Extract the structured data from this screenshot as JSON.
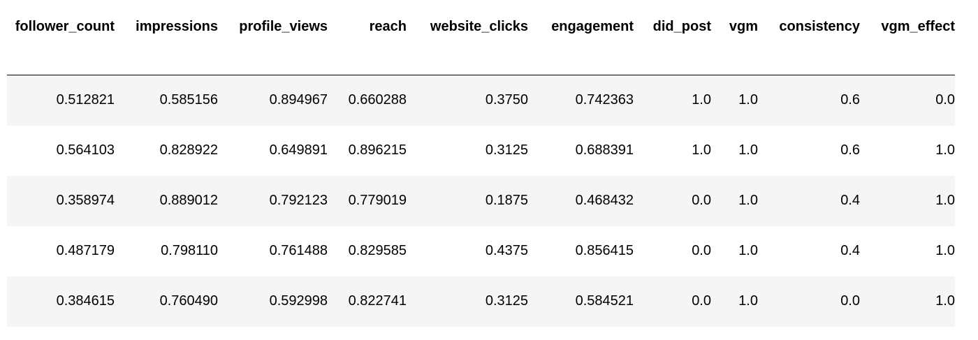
{
  "table": {
    "columns": [
      "follower_count",
      "impressions",
      "profile_views",
      "reach",
      "website_clicks",
      "engagement",
      "did_post",
      "vgm",
      "consistency",
      "vgm_effect"
    ],
    "rows": [
      [
        "0.512821",
        "0.585156",
        "0.894967",
        "0.660288",
        "0.3750",
        "0.742363",
        "1.0",
        "1.0",
        "0.6",
        "0.0"
      ],
      [
        "0.564103",
        "0.828922",
        "0.649891",
        "0.896215",
        "0.3125",
        "0.688391",
        "1.0",
        "1.0",
        "0.6",
        "1.0"
      ],
      [
        "0.358974",
        "0.889012",
        "0.792123",
        "0.779019",
        "0.1875",
        "0.468432",
        "0.0",
        "1.0",
        "0.4",
        "1.0"
      ],
      [
        "0.487179",
        "0.798110",
        "0.761488",
        "0.829585",
        "0.4375",
        "0.856415",
        "0.0",
        "1.0",
        "0.4",
        "1.0"
      ],
      [
        "0.384615",
        "0.760490",
        "0.592998",
        "0.822741",
        "0.3125",
        "0.584521",
        "0.0",
        "1.0",
        "0.0",
        "1.0"
      ]
    ]
  }
}
